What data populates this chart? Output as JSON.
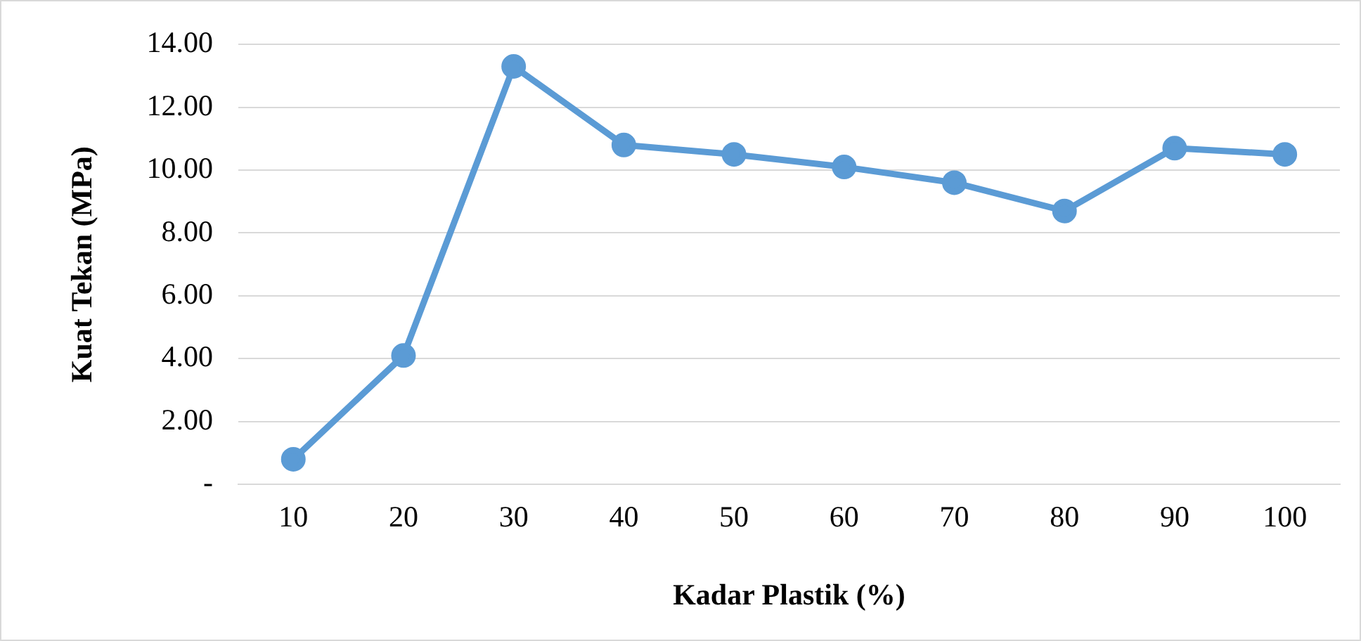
{
  "chart_data": {
    "type": "line",
    "xlabel": "Kadar Plastik (%)",
    "ylabel": "Kuat Tekan (MPa)",
    "categories": [
      "10",
      "20",
      "30",
      "40",
      "50",
      "60",
      "70",
      "80",
      "90",
      "100"
    ],
    "series": [
      {
        "color": "#5b9bd5",
        "values": [
          0.8,
          4.1,
          13.3,
          10.8,
          10.5,
          10.1,
          9.6,
          8.7,
          10.7,
          10.5
        ]
      }
    ],
    "ylim": [
      0,
      14
    ],
    "yticks": [
      {
        "value": 0,
        "label": "-"
      },
      {
        "value": 2,
        "label": "2.00"
      },
      {
        "value": 4,
        "label": "4.00"
      },
      {
        "value": 6,
        "label": "6.00"
      },
      {
        "value": 8,
        "label": "8.00"
      },
      {
        "value": 10,
        "label": "10.00"
      },
      {
        "value": 12,
        "label": "12.00"
      },
      {
        "value": 14,
        "label": "14.00"
      }
    ],
    "grid": "y",
    "legend": false,
    "marker": "circle",
    "line_style": "solid"
  }
}
